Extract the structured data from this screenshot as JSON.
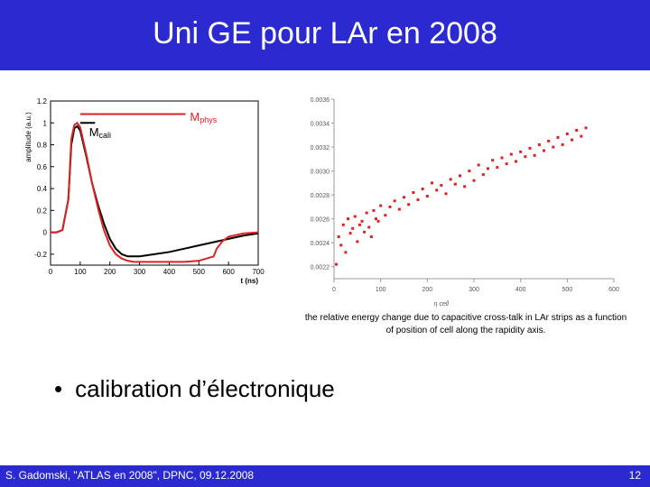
{
  "slide": {
    "title": "Uni GE pour LAr en 2008",
    "bullet": "calibration d’électronique",
    "caption": "the relative energy change due to capacitive cross-talk in LAr strips as a function of  position of cell along  the rapidity axis.",
    "footer_left": "S. Gadomski, \"ATLAS en 2008\", DPNC, 09.12.2008",
    "page_number": "12",
    "colors": {
      "header": "#2a2ad0",
      "red": "#e02020",
      "black": "#000000"
    }
  },
  "chart_data": [
    {
      "type": "line",
      "ylabel": "amplitude (a.u.)",
      "xlabel": "t (ns)",
      "x_ticks": [
        "0",
        "100",
        "200",
        "300",
        "400",
        "500",
        "600",
        "700"
      ],
      "y_ticks": [
        "-0.2",
        "0",
        "0.2",
        "0.4",
        "0.6",
        "0.8",
        "1",
        "1.2"
      ],
      "xlim": [
        0,
        700
      ],
      "ylim": [
        -0.3,
        1.2
      ],
      "labels": {
        "mcali_main": "M",
        "mcali_sub": "cali",
        "mphys_main": "M",
        "mphys_sub": "phys"
      },
      "series": [
        {
          "color": "#000000",
          "x": [
            0,
            20,
            40,
            60,
            70,
            80,
            90,
            100,
            120,
            140,
            160,
            180,
            200,
            220,
            240,
            260,
            280,
            300,
            350,
            400,
            450,
            500,
            550,
            600,
            650,
            700
          ],
          "y": [
            0,
            0,
            0.02,
            0.3,
            0.8,
            0.95,
            0.97,
            0.93,
            0.7,
            0.45,
            0.25,
            0.08,
            -0.06,
            -0.15,
            -0.2,
            -0.22,
            -0.22,
            -0.22,
            -0.2,
            -0.18,
            -0.15,
            -0.12,
            -0.09,
            -0.06,
            -0.03,
            -0.01
          ]
        },
        {
          "color": "#e02020",
          "x": [
            0,
            20,
            40,
            60,
            70,
            80,
            90,
            100,
            120,
            140,
            160,
            180,
            200,
            220,
            240,
            260,
            280,
            300,
            350,
            400,
            450,
            500,
            550,
            560,
            580,
            600,
            650,
            700
          ],
          "y": [
            0,
            0,
            0.02,
            0.3,
            0.85,
            0.98,
            1.0,
            0.96,
            0.72,
            0.45,
            0.22,
            0.02,
            -0.12,
            -0.2,
            -0.24,
            -0.26,
            -0.27,
            -0.27,
            -0.27,
            -0.27,
            -0.27,
            -0.26,
            -0.22,
            -0.15,
            -0.08,
            -0.04,
            -0.01,
            0
          ]
        }
      ]
    },
    {
      "type": "scatter",
      "xlabel": "η cell",
      "x_ticks": [
        "0",
        "100",
        "200",
        "300",
        "400",
        "500",
        "600"
      ],
      "y_ticks": [
        "0.0022",
        "0.0024",
        "0.0026",
        "0.0028",
        "0.0030",
        "0.0032",
        "0.0034",
        "0.0036"
      ],
      "xlim": [
        0,
        600
      ],
      "ylim": [
        0.0021,
        0.0036
      ],
      "series": [
        {
          "color": "#e02020",
          "x": [
            5,
            10,
            15,
            20,
            25,
            30,
            35,
            40,
            45,
            50,
            55,
            60,
            65,
            70,
            75,
            80,
            85,
            90,
            95,
            100,
            110,
            120,
            130,
            140,
            150,
            160,
            170,
            180,
            190,
            200,
            210,
            220,
            230,
            240,
            250,
            260,
            270,
            280,
            290,
            300,
            310,
            320,
            330,
            340,
            350,
            360,
            370,
            380,
            390,
            400,
            410,
            420,
            430,
            440,
            450,
            460,
            470,
            480,
            490,
            500,
            510,
            520,
            530,
            540
          ],
          "y": [
            0.00222,
            0.00245,
            0.00238,
            0.00255,
            0.00232,
            0.0026,
            0.00248,
            0.00252,
            0.00262,
            0.00241,
            0.00255,
            0.00258,
            0.00249,
            0.00265,
            0.00253,
            0.00245,
            0.00267,
            0.0026,
            0.00258,
            0.00271,
            0.00263,
            0.0027,
            0.00275,
            0.00268,
            0.00278,
            0.00272,
            0.00282,
            0.00276,
            0.00285,
            0.00279,
            0.0029,
            0.00284,
            0.00288,
            0.00281,
            0.00293,
            0.00289,
            0.00296,
            0.00287,
            0.003,
            0.00292,
            0.00305,
            0.00297,
            0.00302,
            0.00309,
            0.00303,
            0.00311,
            0.00306,
            0.00314,
            0.00308,
            0.00316,
            0.00312,
            0.00319,
            0.00313,
            0.00322,
            0.00317,
            0.00325,
            0.0032,
            0.00328,
            0.00322,
            0.00331,
            0.00326,
            0.00334,
            0.00329,
            0.00336
          ]
        }
      ]
    }
  ]
}
